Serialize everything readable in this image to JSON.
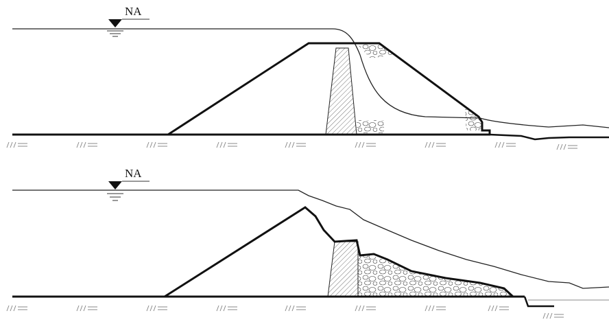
{
  "panels": [
    {
      "water_label": "NA"
    },
    {
      "water_label": "NA"
    }
  ]
}
